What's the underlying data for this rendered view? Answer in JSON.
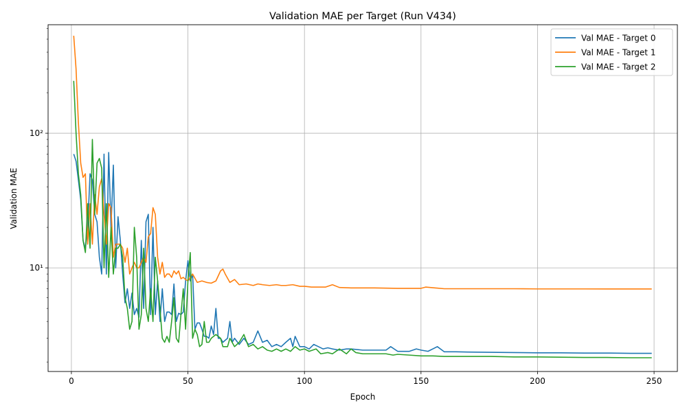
{
  "chart_data": {
    "type": "line",
    "title": "Validation MAE per Target (Run V434)",
    "xlabel": "Epoch",
    "ylabel": "Validation MAE",
    "xlim": [
      -10,
      260
    ],
    "ylim": [
      1.7,
      640
    ],
    "yscale": "log",
    "grid": true,
    "legend_position": "top-right",
    "x_ticks": [
      0,
      50,
      100,
      150,
      200,
      250
    ],
    "x_tick_labels": [
      "0",
      "50",
      "100",
      "150",
      "200",
      "250"
    ],
    "y_major_ticks": [
      10,
      100
    ],
    "y_major_tick_labels": [
      "10¹",
      "10²"
    ],
    "series": [
      {
        "name": "Val MAE - Target 0",
        "color": "#1f77b4",
        "points": [
          [
            1,
            70
          ],
          [
            2,
            62
          ],
          [
            3,
            45
          ],
          [
            4,
            32
          ],
          [
            5,
            16
          ],
          [
            6,
            14
          ],
          [
            7,
            20
          ],
          [
            8,
            50
          ],
          [
            9,
            45
          ],
          [
            10,
            25
          ],
          [
            11,
            22
          ],
          [
            12,
            12
          ],
          [
            13,
            9
          ],
          [
            14,
            70
          ],
          [
            15,
            9
          ],
          [
            16,
            72
          ],
          [
            17,
            20
          ],
          [
            18,
            58
          ],
          [
            19,
            10
          ],
          [
            20,
            24
          ],
          [
            21,
            16
          ],
          [
            22,
            9
          ],
          [
            23,
            5.5
          ],
          [
            24,
            7
          ],
          [
            25,
            5
          ],
          [
            26,
            6.5
          ],
          [
            27,
            4.5
          ],
          [
            28,
            5
          ],
          [
            29,
            4.3
          ],
          [
            30,
            16
          ],
          [
            31,
            5
          ],
          [
            32,
            22
          ],
          [
            33,
            25
          ],
          [
            34,
            4.5
          ],
          [
            35,
            20
          ],
          [
            36,
            4.5
          ],
          [
            37,
            8
          ],
          [
            38,
            4
          ],
          [
            39,
            7
          ],
          [
            40,
            4
          ],
          [
            41,
            4.7
          ],
          [
            42,
            4.7
          ],
          [
            43,
            4.5
          ],
          [
            44,
            7.6
          ],
          [
            45,
            4
          ],
          [
            46,
            4.6
          ],
          [
            47,
            4.5
          ],
          [
            48,
            4.7
          ],
          [
            49,
            8
          ],
          [
            50,
            11.3
          ],
          [
            51,
            8
          ],
          [
            52,
            9
          ],
          [
            53,
            3.5
          ],
          [
            54,
            3.9
          ],
          [
            55,
            3.9
          ],
          [
            56,
            3.5
          ],
          [
            57,
            3.1
          ],
          [
            58,
            3.1
          ],
          [
            59,
            3
          ],
          [
            60,
            3.7
          ],
          [
            61,
            3.2
          ],
          [
            62,
            5
          ],
          [
            63,
            3
          ],
          [
            64,
            3
          ],
          [
            65,
            2.8
          ],
          [
            66,
            2.9
          ],
          [
            67,
            3
          ],
          [
            68,
            4
          ],
          [
            69,
            2.8
          ],
          [
            70,
            3
          ],
          [
            72,
            2.7
          ],
          [
            74,
            3
          ],
          [
            76,
            2.7
          ],
          [
            78,
            2.8
          ],
          [
            80,
            3.4
          ],
          [
            82,
            2.8
          ],
          [
            84,
            2.9
          ],
          [
            86,
            2.6
          ],
          [
            88,
            2.7
          ],
          [
            90,
            2.6
          ],
          [
            92,
            2.8
          ],
          [
            94,
            3
          ],
          [
            95,
            2.6
          ],
          [
            96,
            3.1
          ],
          [
            98,
            2.6
          ],
          [
            100,
            2.6
          ],
          [
            102,
            2.5
          ],
          [
            104,
            2.7
          ],
          [
            106,
            2.6
          ],
          [
            108,
            2.5
          ],
          [
            110,
            2.55
          ],
          [
            112,
            2.5
          ],
          [
            115,
            2.45
          ],
          [
            118,
            2.5
          ],
          [
            120,
            2.5
          ],
          [
            125,
            2.45
          ],
          [
            130,
            2.45
          ],
          [
            135,
            2.45
          ],
          [
            137,
            2.6
          ],
          [
            140,
            2.4
          ],
          [
            145,
            2.4
          ],
          [
            148,
            2.5
          ],
          [
            150,
            2.45
          ],
          [
            153,
            2.4
          ],
          [
            157,
            2.6
          ],
          [
            160,
            2.38
          ],
          [
            165,
            2.38
          ],
          [
            170,
            2.37
          ],
          [
            180,
            2.36
          ],
          [
            190,
            2.35
          ],
          [
            200,
            2.34
          ],
          [
            210,
            2.34
          ],
          [
            220,
            2.33
          ],
          [
            230,
            2.33
          ],
          [
            240,
            2.32
          ],
          [
            249,
            2.32
          ]
        ]
      },
      {
        "name": "Val MAE - Target 1",
        "color": "#ff7f0e",
        "points": [
          [
            1,
            530
          ],
          [
            2,
            300
          ],
          [
            3,
            120
          ],
          [
            4,
            60
          ],
          [
            5,
            47
          ],
          [
            6,
            50
          ],
          [
            7,
            15
          ],
          [
            8,
            30
          ],
          [
            9,
            15
          ],
          [
            10,
            35
          ],
          [
            11,
            25
          ],
          [
            12,
            40
          ],
          [
            13,
            46
          ],
          [
            14,
            25
          ],
          [
            15,
            15
          ],
          [
            16,
            30
          ],
          [
            17,
            28
          ],
          [
            18,
            12
          ],
          [
            19,
            15
          ],
          [
            20,
            15
          ],
          [
            21,
            15
          ],
          [
            22,
            14
          ],
          [
            23,
            11
          ],
          [
            24,
            14
          ],
          [
            25,
            9
          ],
          [
            26,
            10
          ],
          [
            27,
            11
          ],
          [
            28,
            10
          ],
          [
            29,
            10
          ],
          [
            30,
            11
          ],
          [
            31,
            12
          ],
          [
            32,
            11
          ],
          [
            33,
            17
          ],
          [
            34,
            18
          ],
          [
            35,
            28
          ],
          [
            36,
            25
          ],
          [
            37,
            12
          ],
          [
            38,
            9
          ],
          [
            39,
            11
          ],
          [
            40,
            8.5
          ],
          [
            41,
            9
          ],
          [
            42,
            9
          ],
          [
            43,
            8.5
          ],
          [
            44,
            9.5
          ],
          [
            45,
            9
          ],
          [
            46,
            9.5
          ],
          [
            47,
            8.3
          ],
          [
            48,
            8.5
          ],
          [
            49,
            8.2
          ],
          [
            50,
            8
          ],
          [
            52,
            9
          ],
          [
            54,
            7.8
          ],
          [
            56,
            8
          ],
          [
            58,
            7.8
          ],
          [
            60,
            7.7
          ],
          [
            62,
            8
          ],
          [
            64,
            9.5
          ],
          [
            65,
            9.8
          ],
          [
            66,
            9
          ],
          [
            68,
            7.8
          ],
          [
            70,
            8.2
          ],
          [
            72,
            7.5
          ],
          [
            75,
            7.6
          ],
          [
            78,
            7.4
          ],
          [
            80,
            7.6
          ],
          [
            82,
            7.5
          ],
          [
            85,
            7.4
          ],
          [
            88,
            7.5
          ],
          [
            90,
            7.4
          ],
          [
            92,
            7.4
          ],
          [
            95,
            7.5
          ],
          [
            98,
            7.3
          ],
          [
            100,
            7.3
          ],
          [
            103,
            7.2
          ],
          [
            106,
            7.2
          ],
          [
            109,
            7.2
          ],
          [
            112,
            7.5
          ],
          [
            115,
            7.15
          ],
          [
            120,
            7.1
          ],
          [
            130,
            7.1
          ],
          [
            140,
            7.05
          ],
          [
            150,
            7.05
          ],
          [
            152,
            7.2
          ],
          [
            160,
            7.0
          ],
          [
            170,
            7.0
          ],
          [
            180,
            7.0
          ],
          [
            190,
            7.0
          ],
          [
            200,
            6.98
          ],
          [
            210,
            6.98
          ],
          [
            220,
            6.98
          ],
          [
            230,
            6.97
          ],
          [
            240,
            6.97
          ],
          [
            249,
            6.97
          ]
        ]
      },
      {
        "name": "Val MAE - Target 2",
        "color": "#2ca02c",
        "points": [
          [
            1,
            245
          ],
          [
            2,
            100
          ],
          [
            3,
            50
          ],
          [
            4,
            35
          ],
          [
            5,
            16
          ],
          [
            6,
            13
          ],
          [
            7,
            30
          ],
          [
            8,
            14
          ],
          [
            9,
            90
          ],
          [
            10,
            25
          ],
          [
            11,
            60
          ],
          [
            12,
            65
          ],
          [
            13,
            55
          ],
          [
            14,
            10
          ],
          [
            15,
            30
          ],
          [
            16,
            8.5
          ],
          [
            17,
            20
          ],
          [
            18,
            9
          ],
          [
            19,
            14
          ],
          [
            20,
            14
          ],
          [
            21,
            15
          ],
          [
            22,
            12
          ],
          [
            23,
            6
          ],
          [
            24,
            5
          ],
          [
            25,
            3.5
          ],
          [
            26,
            4
          ],
          [
            27,
            20
          ],
          [
            28,
            12
          ],
          [
            29,
            3.5
          ],
          [
            30,
            4.5
          ],
          [
            31,
            14
          ],
          [
            32,
            5
          ],
          [
            33,
            4
          ],
          [
            34,
            7
          ],
          [
            35,
            4
          ],
          [
            36,
            12
          ],
          [
            37,
            8
          ],
          [
            38,
            5
          ],
          [
            39,
            3
          ],
          [
            40,
            2.8
          ],
          [
            41,
            3.1
          ],
          [
            42,
            2.8
          ],
          [
            43,
            4
          ],
          [
            44,
            6
          ],
          [
            45,
            3
          ],
          [
            46,
            2.8
          ],
          [
            47,
            4.5
          ],
          [
            48,
            7
          ],
          [
            49,
            3.5
          ],
          [
            50,
            8
          ],
          [
            51,
            13
          ],
          [
            52,
            3
          ],
          [
            53,
            3.5
          ],
          [
            54,
            3.2
          ],
          [
            55,
            2.6
          ],
          [
            56,
            2.7
          ],
          [
            57,
            4
          ],
          [
            58,
            2.8
          ],
          [
            59,
            2.8
          ],
          [
            60,
            3
          ],
          [
            62,
            3.2
          ],
          [
            64,
            3
          ],
          [
            65,
            2.6
          ],
          [
            67,
            2.6
          ],
          [
            68,
            3
          ],
          [
            70,
            2.6
          ],
          [
            72,
            2.8
          ],
          [
            74,
            3.2
          ],
          [
            76,
            2.6
          ],
          [
            78,
            2.7
          ],
          [
            80,
            2.5
          ],
          [
            82,
            2.6
          ],
          [
            84,
            2.45
          ],
          [
            86,
            2.4
          ],
          [
            88,
            2.5
          ],
          [
            90,
            2.4
          ],
          [
            92,
            2.5
          ],
          [
            94,
            2.4
          ],
          [
            96,
            2.6
          ],
          [
            98,
            2.45
          ],
          [
            100,
            2.5
          ],
          [
            102,
            2.4
          ],
          [
            105,
            2.5
          ],
          [
            107,
            2.3
          ],
          [
            110,
            2.35
          ],
          [
            112,
            2.3
          ],
          [
            115,
            2.5
          ],
          [
            118,
            2.3
          ],
          [
            120,
            2.5
          ],
          [
            122,
            2.35
          ],
          [
            125,
            2.3
          ],
          [
            130,
            2.3
          ],
          [
            135,
            2.3
          ],
          [
            138,
            2.25
          ],
          [
            140,
            2.28
          ],
          [
            145,
            2.25
          ],
          [
            150,
            2.22
          ],
          [
            155,
            2.22
          ],
          [
            160,
            2.2
          ],
          [
            165,
            2.2
          ],
          [
            170,
            2.2
          ],
          [
            180,
            2.2
          ],
          [
            190,
            2.18
          ],
          [
            200,
            2.18
          ],
          [
            210,
            2.17
          ],
          [
            220,
            2.16
          ],
          [
            230,
            2.16
          ],
          [
            240,
            2.15
          ],
          [
            249,
            2.15
          ]
        ]
      }
    ]
  }
}
